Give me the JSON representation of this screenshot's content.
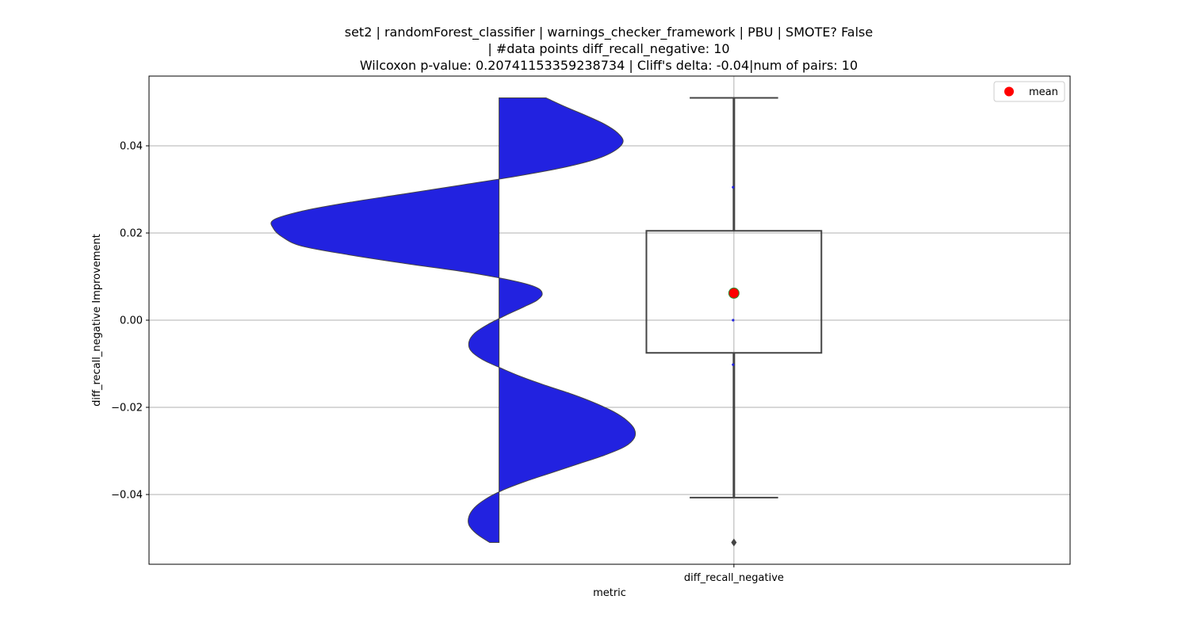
{
  "chart_data": {
    "type": "violin+box",
    "title_lines": [
      "set2 | randomForest_classifier | warnings_checker_framework | PBU | SMOTE? False",
      "| #data points diff_recall_negative: 10",
      "Wilcoxon p-value: 0.20741153359238734 | Cliff's delta: -0.04|num of pairs: 10"
    ],
    "xlabel": "metric",
    "ylabel": "diff_recall_negative Improvement",
    "categories": [
      "diff_recall_negative"
    ],
    "ylim": [
      -0.056,
      0.056
    ],
    "yticks": [
      -0.04,
      -0.02,
      0.0,
      0.02,
      0.04
    ],
    "ytick_labels": [
      "−0.04",
      "−0.02",
      "0.00",
      "0.02",
      "0.04"
    ],
    "grid": true,
    "legend": {
      "position": "upper-right",
      "entries": [
        {
          "label": "mean",
          "color": "#ff0000"
        }
      ]
    },
    "violin": {
      "color": "#2222e0",
      "edge_color": "#444444",
      "side": "left",
      "density_profile": [
        [
          0.051,
          0.25
        ],
        [
          0.049,
          0.35
        ],
        [
          0.047,
          0.46
        ],
        [
          0.045,
          0.56
        ],
        [
          0.043,
          0.63
        ],
        [
          0.041,
          0.66
        ],
        [
          0.039,
          0.62
        ],
        [
          0.037,
          0.52
        ],
        [
          0.035,
          0.34
        ],
        [
          0.033,
          0.09
        ],
        [
          0.031,
          -0.2
        ],
        [
          0.029,
          -0.5
        ],
        [
          0.027,
          -0.8
        ],
        [
          0.025,
          -1.05
        ],
        [
          0.023,
          -1.2
        ],
        [
          0.021,
          -1.2
        ],
        [
          0.019,
          -1.15
        ],
        [
          0.017,
          -1.05
        ],
        [
          0.015,
          -0.8
        ],
        [
          0.013,
          -0.5
        ],
        [
          0.011,
          -0.17
        ],
        [
          0.009,
          0.08
        ],
        [
          0.0075,
          0.2
        ],
        [
          0.006,
          0.23
        ],
        [
          0.0045,
          0.2
        ],
        [
          0.003,
          0.13
        ],
        [
          0.001,
          0.03
        ],
        [
          -0.001,
          -0.06
        ],
        [
          -0.003,
          -0.13
        ],
        [
          -0.005,
          -0.16
        ],
        [
          -0.007,
          -0.15
        ],
        [
          -0.009,
          -0.09
        ],
        [
          -0.011,
          0.01
        ],
        [
          -0.013,
          0.12
        ],
        [
          -0.015,
          0.25
        ],
        [
          -0.017,
          0.39
        ],
        [
          -0.019,
          0.51
        ],
        [
          -0.021,
          0.61
        ],
        [
          -0.023,
          0.68
        ],
        [
          -0.025,
          0.72
        ],
        [
          -0.027,
          0.72
        ],
        [
          -0.029,
          0.67
        ],
        [
          -0.031,
          0.56
        ],
        [
          -0.033,
          0.42
        ],
        [
          -0.035,
          0.28
        ],
        [
          -0.037,
          0.14
        ],
        [
          -0.039,
          0.02
        ],
        [
          -0.041,
          -0.07
        ],
        [
          -0.043,
          -0.13
        ],
        [
          -0.045,
          -0.16
        ],
        [
          -0.047,
          -0.16
        ],
        [
          -0.049,
          -0.12
        ],
        [
          -0.051,
          -0.05
        ]
      ]
    },
    "box": {
      "q1": -0.0075,
      "median": 0.0,
      "q3": 0.0205,
      "whisker_low": -0.0407,
      "whisker_high": 0.051,
      "mean": 0.0062,
      "outliers": [
        -0.051
      ],
      "points": [
        0.0305,
        0.0,
        -0.0102
      ]
    }
  }
}
